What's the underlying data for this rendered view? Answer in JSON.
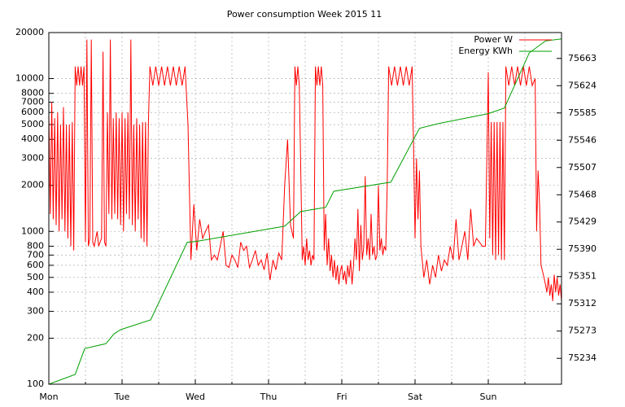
{
  "chart_data": {
    "type": "line",
    "title": "Power consumption Week 2015 11",
    "xlim": [
      0,
      7
    ],
    "xticks": [
      {
        "value": 0,
        "label": "Mon"
      },
      {
        "value": 1,
        "label": "Tue"
      },
      {
        "value": 2,
        "label": "Wed"
      },
      {
        "value": 3,
        "label": "Thu"
      },
      {
        "value": 4,
        "label": "Fri"
      },
      {
        "value": 5,
        "label": "Sat"
      },
      {
        "value": 6,
        "label": "Sun"
      }
    ],
    "xminorticks": [
      0.5,
      1.5,
      2.5,
      3.5,
      4.5,
      5.5,
      6.5
    ],
    "ylim": [
      100,
      20000
    ],
    "log_y": true,
    "yticks": [
      100,
      200,
      300,
      400,
      500,
      600,
      700,
      800,
      1000,
      2000,
      3000,
      4000,
      5000,
      6000,
      7000,
      8000,
      10000,
      20000
    ],
    "y2lim": [
      75197,
      75700
    ],
    "y2ticks": [
      75234,
      75273,
      75312,
      75351,
      75390,
      75429,
      75468,
      75507,
      75546,
      75585,
      75624,
      75663
    ],
    "grid": true,
    "legend": "top right",
    "series": [
      {
        "name": "Power W",
        "color": "#ff0000",
        "x": [
          0,
          0.02,
          0.04,
          0.06,
          0.08,
          0.1,
          0.12,
          0.14,
          0.16,
          0.18,
          0.2,
          0.22,
          0.24,
          0.26,
          0.28,
          0.3,
          0.32,
          0.34,
          0.36,
          0.38,
          0.4,
          0.42,
          0.44,
          0.46,
          0.48,
          0.5,
          0.52,
          0.54,
          0.56,
          0.58,
          0.6,
          0.62,
          0.64,
          0.66,
          0.68,
          0.7,
          0.72,
          0.74,
          0.76,
          0.78,
          0.8,
          0.82,
          0.84,
          0.86,
          0.88,
          0.9,
          0.92,
          0.94,
          0.96,
          0.98,
          1,
          1.02,
          1.04,
          1.06,
          1.08,
          1.1,
          1.12,
          1.14,
          1.16,
          1.18,
          1.2,
          1.22,
          1.24,
          1.26,
          1.28,
          1.3,
          1.32,
          1.34,
          1.36,
          1.38,
          1.42,
          1.46,
          1.5,
          1.54,
          1.58,
          1.62,
          1.66,
          1.7,
          1.74,
          1.78,
          1.82,
          1.86,
          1.9,
          1.94,
          1.98,
          2.02,
          2.06,
          2.1,
          2.14,
          2.18,
          2.22,
          2.26,
          2.3,
          2.34,
          2.38,
          2.42,
          2.46,
          2.5,
          2.54,
          2.58,
          2.62,
          2.66,
          2.7,
          2.74,
          2.78,
          2.82,
          2.86,
          2.9,
          2.94,
          2.98,
          3.02,
          3.06,
          3.1,
          3.14,
          3.18,
          3.22,
          3.26,
          3.3,
          3.34,
          3.36,
          3.38,
          3.4,
          3.42,
          3.44,
          3.46,
          3.48,
          3.5,
          3.52,
          3.54,
          3.56,
          3.58,
          3.6,
          3.62,
          3.64,
          3.66,
          3.68,
          3.7,
          3.72,
          3.74,
          3.76,
          3.78,
          3.8,
          3.82,
          3.84,
          3.86,
          3.88,
          3.9,
          3.92,
          3.94,
          3.96,
          3.98,
          4,
          4.02,
          4.04,
          4.06,
          4.08,
          4.1,
          4.12,
          4.14,
          4.16,
          4.18,
          4.2,
          4.22,
          4.24,
          4.26,
          4.28,
          4.3,
          4.32,
          4.34,
          4.36,
          4.38,
          4.4,
          4.42,
          4.44,
          4.46,
          4.48,
          4.5,
          4.52,
          4.54,
          4.56,
          4.58,
          4.6,
          4.62,
          4.64,
          4.68,
          4.72,
          4.76,
          4.8,
          4.84,
          4.88,
          4.92,
          4.96,
          4.98,
          5,
          5.02,
          5.04,
          5.06,
          5.08,
          5.12,
          5.16,
          5.2,
          5.24,
          5.28,
          5.32,
          5.36,
          5.4,
          5.44,
          5.48,
          5.52,
          5.56,
          5.6,
          5.64,
          5.68,
          5.72,
          5.76,
          5.8,
          5.84,
          5.88,
          5.92,
          5.96,
          6,
          6.02,
          6.04,
          6.06,
          6.08,
          6.1,
          6.12,
          6.14,
          6.16,
          6.18,
          6.2,
          6.22,
          6.24,
          6.28,
          6.32,
          6.36,
          6.4,
          6.44,
          6.48,
          6.52,
          6.56,
          6.6,
          6.64,
          6.66,
          6.68,
          6.7,
          6.72,
          6.74,
          6.76,
          6.78,
          6.8,
          6.82,
          6.84,
          6.86,
          6.88,
          6.9,
          6.92,
          6.94,
          6.96,
          6.98,
          7
        ],
        "values": [
          6000,
          1300,
          7000,
          1200,
          5500,
          1100,
          6000,
          1000,
          5000,
          1200,
          6500,
          1000,
          5000,
          900,
          5000,
          800,
          5200,
          750,
          12000,
          9000,
          12000,
          9000,
          12000,
          9000,
          12000,
          850,
          18000,
          800,
          900,
          18000,
          850,
          800,
          900,
          1000,
          800,
          850,
          900,
          15000,
          850,
          800,
          6000,
          1300,
          18000,
          1200,
          5500,
          1300,
          6000,
          1200,
          5500,
          1100,
          6000,
          1000,
          5500,
          1300,
          6000,
          1200,
          18000,
          1100,
          5000,
          1000,
          5500,
          1200,
          5000,
          900,
          5200,
          850,
          5200,
          800,
          5200,
          12000,
          9000,
          12000,
          9000,
          12000,
          9000,
          12000,
          9000,
          12000,
          9000,
          12000,
          9000,
          12000,
          5000,
          650,
          1500,
          750,
          1200,
          900,
          1000,
          1100,
          650,
          700,
          650,
          800,
          1000,
          600,
          580,
          700,
          650,
          580,
          850,
          750,
          800,
          580,
          650,
          750,
          600,
          650,
          560,
          720,
          480,
          650,
          560,
          720,
          650,
          2000,
          4000,
          1100,
          900,
          12000,
          9000,
          12000,
          9000,
          2500,
          650,
          800,
          600,
          900,
          650,
          750,
          600,
          700,
          650,
          12000,
          9000,
          12000,
          9000,
          12000,
          9000,
          750,
          1300,
          600,
          900,
          550,
          700,
          500,
          650,
          480,
          600,
          450,
          550,
          600,
          480,
          550,
          450,
          600,
          500,
          650,
          450,
          600,
          900,
          650,
          1400,
          550,
          1100,
          650,
          800,
          2300,
          700,
          900,
          650,
          1300,
          700,
          800,
          650,
          700,
          2000,
          750,
          900,
          700,
          800,
          750,
          2000,
          12000,
          9000,
          12000,
          9000,
          12000,
          9000,
          12000,
          9000,
          12000,
          3500,
          900,
          3000,
          1200,
          2500,
          800,
          500,
          650,
          450,
          600,
          500,
          700,
          550,
          650,
          600,
          800,
          650,
          1200,
          650,
          800,
          1000,
          650,
          1400,
          800,
          900,
          850,
          800,
          800,
          11000,
          900,
          5200,
          700,
          5200,
          650,
          5200,
          700,
          5200,
          650,
          5200,
          650,
          12000,
          9000,
          12000,
          9000,
          12000,
          9000,
          12000,
          9000,
          12000,
          9000,
          10000,
          1000,
          2500,
          1500,
          600,
          550,
          500,
          450,
          400,
          500,
          380,
          450,
          350,
          520,
          400,
          500,
          380,
          450,
          350
        ]
      },
      {
        "name": "Energy KWh",
        "color": "#00a000",
        "axis": "y2",
        "x": [
          0,
          0.36,
          0.49,
          0.78,
          0.89,
          0.98,
          1.39,
          1.89,
          2,
          3.22,
          3.44,
          3.78,
          3.89,
          4.67,
          5.06,
          5.33,
          6,
          6.22,
          6.56,
          6.78,
          7
        ],
        "values": [
          75197,
          75211,
          75248,
          75255,
          75269,
          75275,
          75289,
          75400,
          75401,
          75423,
          75444,
          75450,
          75473,
          75486,
          75563,
          75570,
          75584,
          75592,
          75671,
          75688,
          75691
        ]
      }
    ]
  }
}
